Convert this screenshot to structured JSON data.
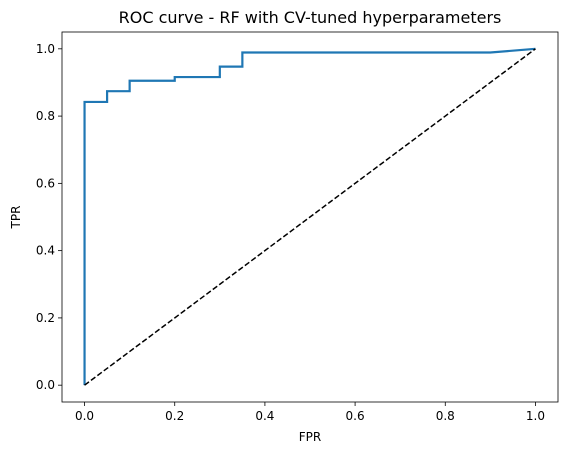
{
  "chart_data": {
    "type": "line",
    "title": "ROC curve - RF with CV-tuned hyperparameters",
    "xlabel": "FPR",
    "ylabel": "TPR",
    "xlim": [
      -0.05,
      1.05
    ],
    "ylim": [
      -0.05,
      1.05
    ],
    "xticks": [
      0.0,
      0.2,
      0.4,
      0.6,
      0.8,
      1.0
    ],
    "xtick_labels": [
      "0.0",
      "0.2",
      "0.4",
      "0.6",
      "0.8",
      "1.0"
    ],
    "yticks": [
      0.0,
      0.2,
      0.4,
      0.6,
      0.8,
      1.0
    ],
    "ytick_labels": [
      "0.0",
      "0.2",
      "0.4",
      "0.6",
      "0.8",
      "1.0"
    ],
    "grid": false,
    "series": [
      {
        "style": "solid",
        "color": "#1f77b4",
        "x": [
          0.0,
          0.0,
          0.05,
          0.05,
          0.1,
          0.1,
          0.2,
          0.2,
          0.3,
          0.3,
          0.35,
          0.35,
          0.9,
          1.0
        ],
        "y": [
          0.0,
          0.842,
          0.842,
          0.874,
          0.874,
          0.905,
          0.905,
          0.916,
          0.916,
          0.947,
          0.947,
          0.989,
          0.989,
          1.0
        ]
      },
      {
        "style": "dashed",
        "color": "#000000",
        "x": [
          0.0,
          1.0
        ],
        "y": [
          0.0,
          1.0
        ]
      }
    ]
  }
}
